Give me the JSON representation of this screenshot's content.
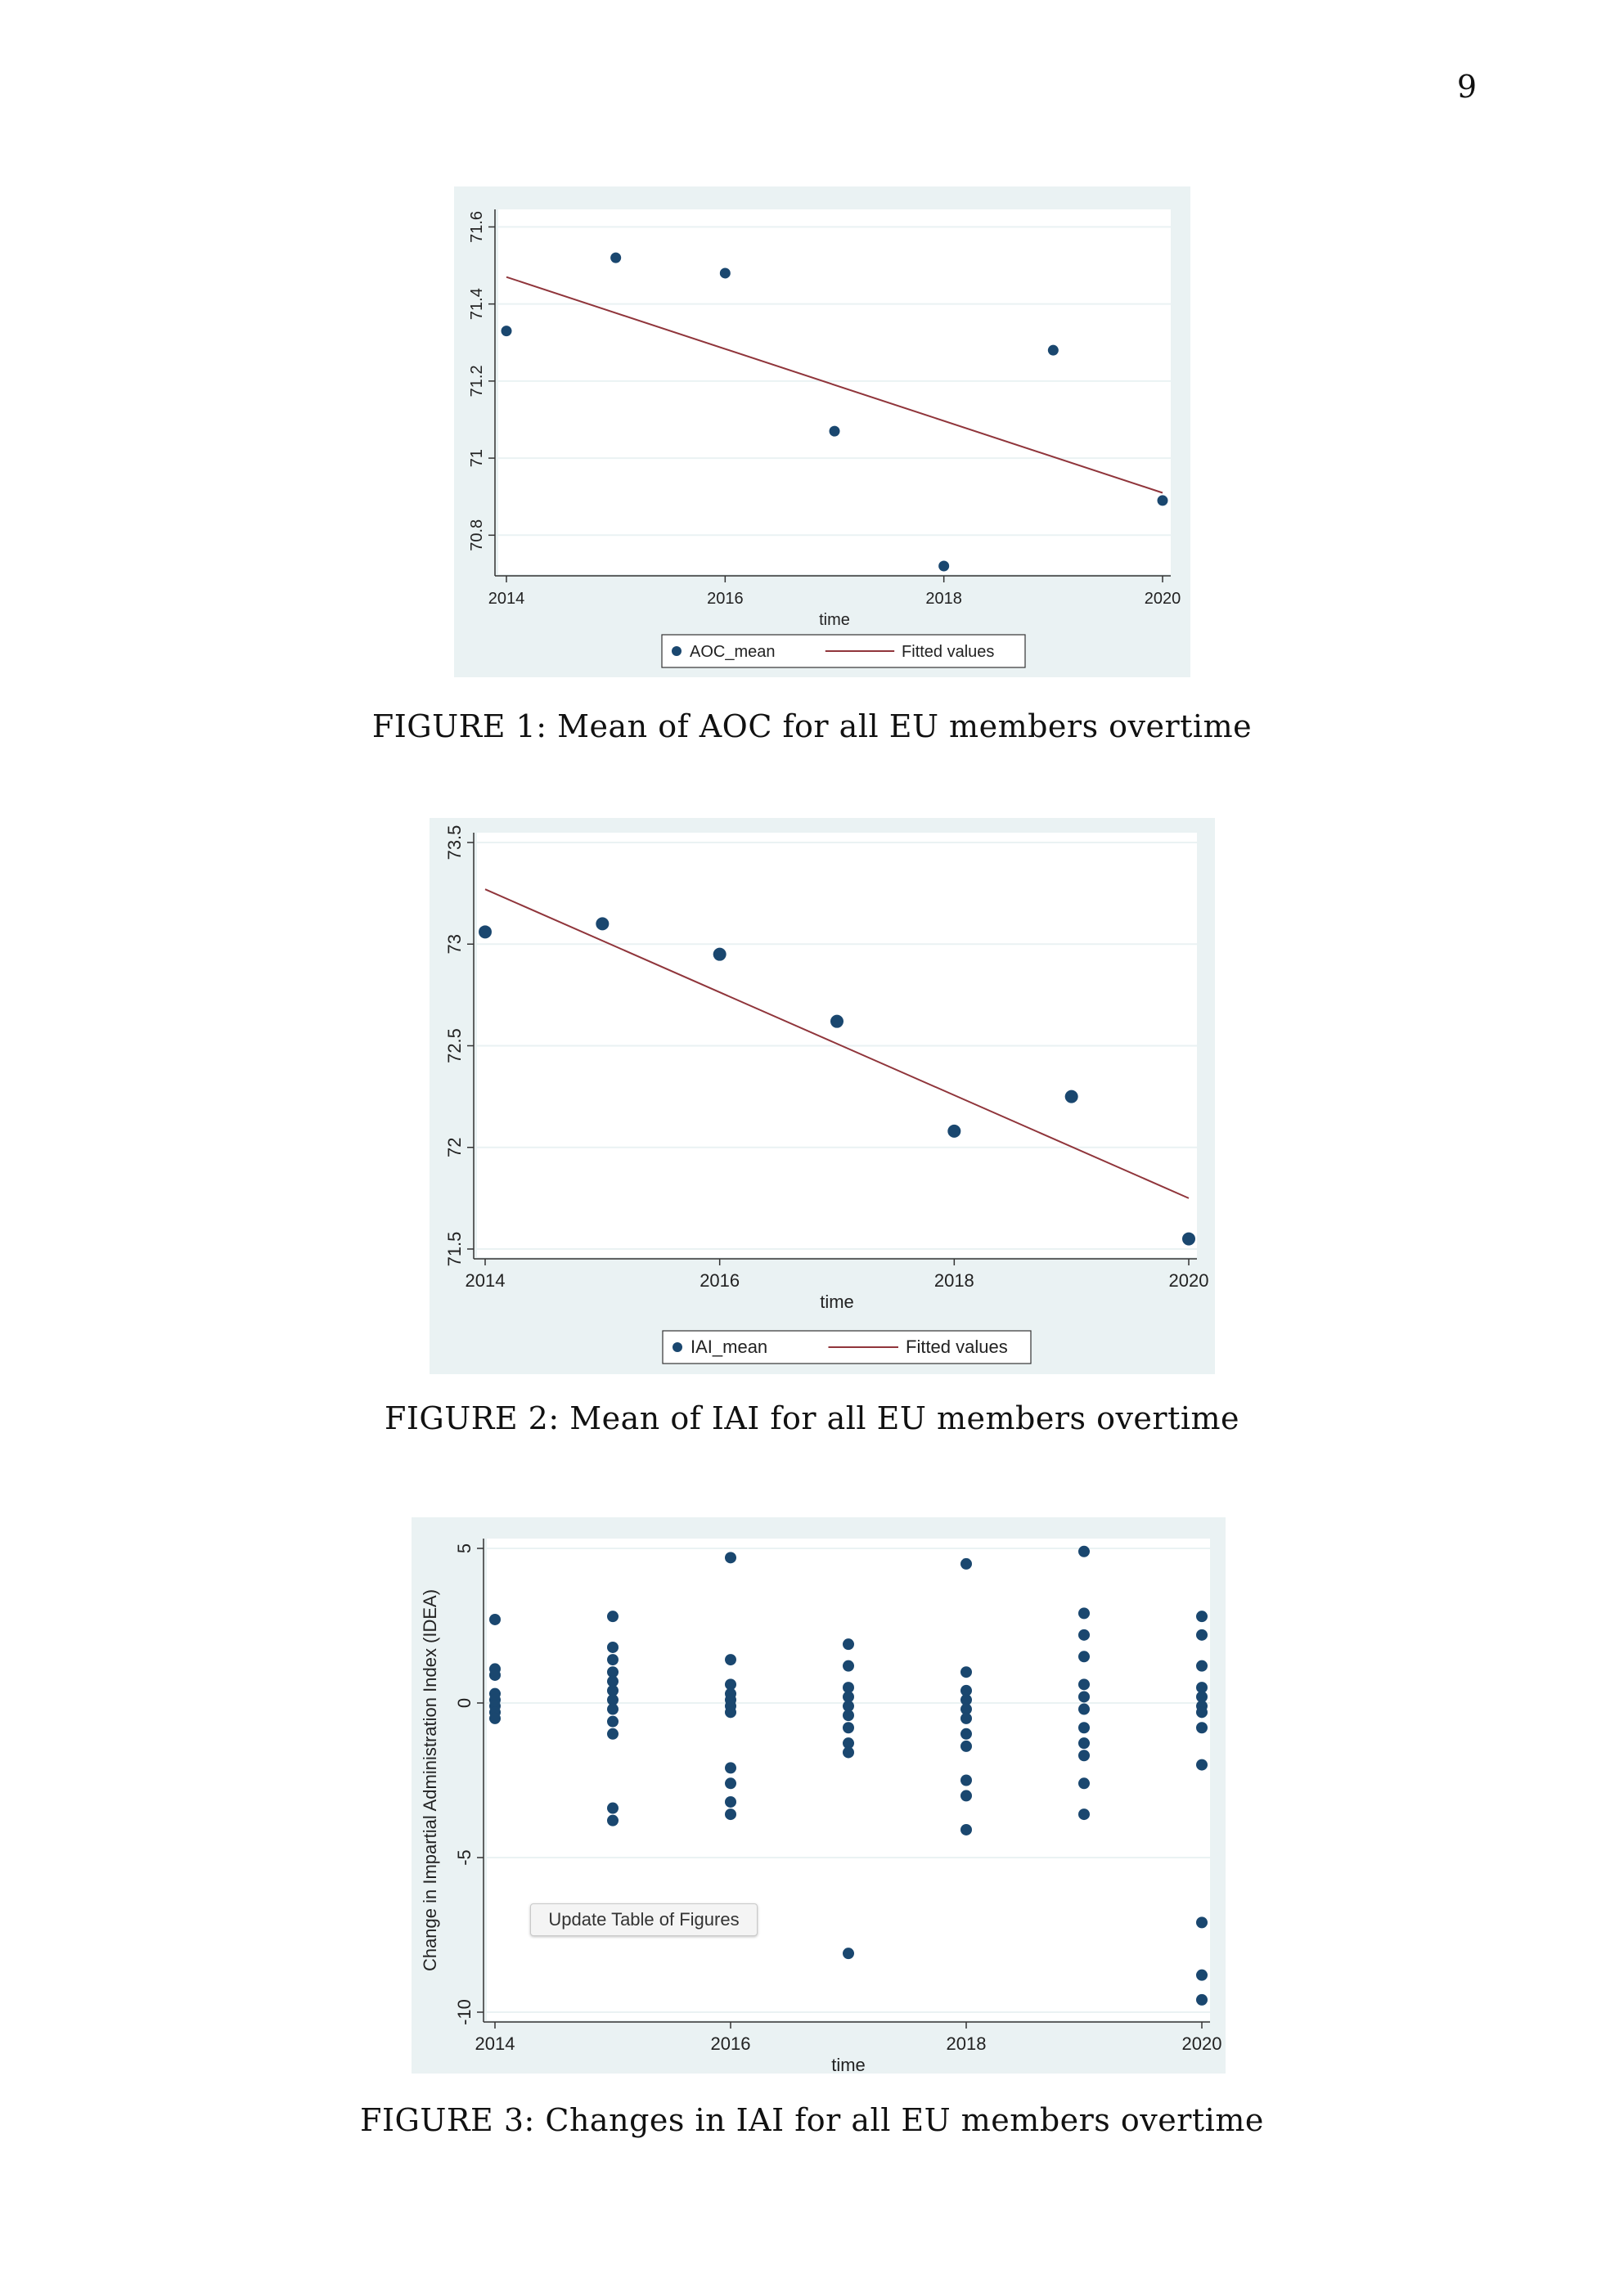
{
  "page": {
    "number": "9"
  },
  "captions": {
    "fig1": "FIGURE 1: Mean of AOC for all EU members overtime",
    "fig2": "FIGURE 2: Mean of IAI for all EU members overtime",
    "fig3": "FIGURE 3: Changes in IAI for all EU members overtime"
  },
  "update_button": {
    "label": "Update Table of Figures"
  },
  "colors": {
    "panel": "#eaf2f3",
    "plot": "#ffffff",
    "point": "#1a476f",
    "fit": "#90353b",
    "grid": "#eaf2f3"
  },
  "chart_data": [
    {
      "type": "scatter",
      "title": "",
      "xlabel": "time",
      "ylabel": "",
      "xlim": [
        2014,
        2020
      ],
      "ylim": [
        70.72,
        71.62
      ],
      "xticks": [
        "2014",
        "2016",
        "2018",
        "2020"
      ],
      "yticks": [
        "70.8",
        "71",
        "71.2",
        "71.4",
        "71.6"
      ],
      "legend": [
        "AOC_mean",
        "Fitted values"
      ],
      "series": [
        {
          "name": "AOC_mean",
          "x": [
            2014,
            2015,
            2016,
            2017,
            2018,
            2019,
            2020
          ],
          "y": [
            71.33,
            71.52,
            71.48,
            71.07,
            70.72,
            71.28,
            70.89
          ]
        },
        {
          "name": "Fitted values",
          "x": [
            2014,
            2020
          ],
          "y": [
            71.47,
            70.91
          ]
        }
      ]
    },
    {
      "type": "scatter",
      "title": "",
      "xlabel": "time",
      "ylabel": "",
      "xlim": [
        2014,
        2020
      ],
      "ylim": [
        71.5,
        73.5
      ],
      "xticks": [
        "2014",
        "2016",
        "2018",
        "2020"
      ],
      "yticks": [
        "71.5",
        "72",
        "72.5",
        "73",
        "73.5"
      ],
      "legend": [
        "IAI_mean",
        "Fitted values"
      ],
      "series": [
        {
          "name": "IAI_mean",
          "x": [
            2014,
            2015,
            2016,
            2017,
            2018,
            2019,
            2020
          ],
          "y": [
            73.06,
            73.1,
            72.95,
            72.62,
            72.08,
            72.25,
            71.55
          ]
        },
        {
          "name": "Fitted values",
          "x": [
            2014,
            2020
          ],
          "y": [
            73.27,
            71.75
          ]
        }
      ]
    },
    {
      "type": "scatter",
      "title": "",
      "xlabel": "time",
      "ylabel": "Change in Impartial Administration Index (IDEA)",
      "xlim": [
        2014,
        2020
      ],
      "ylim": [
        -10,
        5
      ],
      "xticks": [
        "2014",
        "2016",
        "2018",
        "2020"
      ],
      "yticks": [
        "-10",
        "-5",
        "0",
        "5"
      ],
      "legend": [],
      "series": [
        {
          "name": "change",
          "points": [
            [
              2014,
              2.7
            ],
            [
              2014,
              1.1
            ],
            [
              2014,
              0.9
            ],
            [
              2014,
              0.3
            ],
            [
              2014,
              0.1
            ],
            [
              2014,
              -0.1
            ],
            [
              2014,
              -0.3
            ],
            [
              2014,
              -0.5
            ],
            [
              2015,
              2.8
            ],
            [
              2015,
              1.8
            ],
            [
              2015,
              1.4
            ],
            [
              2015,
              1.0
            ],
            [
              2015,
              0.7
            ],
            [
              2015,
              0.4
            ],
            [
              2015,
              0.1
            ],
            [
              2015,
              -0.2
            ],
            [
              2015,
              -0.6
            ],
            [
              2015,
              -1.0
            ],
            [
              2015,
              -3.4
            ],
            [
              2015,
              -3.8
            ],
            [
              2016,
              4.7
            ],
            [
              2016,
              1.4
            ],
            [
              2016,
              0.6
            ],
            [
              2016,
              0.3
            ],
            [
              2016,
              0.1
            ],
            [
              2016,
              -0.1
            ],
            [
              2016,
              -0.3
            ],
            [
              2016,
              -2.1
            ],
            [
              2016,
              -2.6
            ],
            [
              2016,
              -3.2
            ],
            [
              2016,
              -3.6
            ],
            [
              2017,
              1.9
            ],
            [
              2017,
              1.2
            ],
            [
              2017,
              0.5
            ],
            [
              2017,
              0.2
            ],
            [
              2017,
              -0.1
            ],
            [
              2017,
              -0.4
            ],
            [
              2017,
              -0.8
            ],
            [
              2017,
              -1.3
            ],
            [
              2017,
              -1.6
            ],
            [
              2017,
              -8.1
            ],
            [
              2018,
              4.5
            ],
            [
              2018,
              1.0
            ],
            [
              2018,
              0.4
            ],
            [
              2018,
              0.1
            ],
            [
              2018,
              -0.2
            ],
            [
              2018,
              -0.5
            ],
            [
              2018,
              -1.0
            ],
            [
              2018,
              -1.4
            ],
            [
              2018,
              -2.5
            ],
            [
              2018,
              -3.0
            ],
            [
              2018,
              -4.1
            ],
            [
              2019,
              4.9
            ],
            [
              2019,
              2.9
            ],
            [
              2019,
              2.2
            ],
            [
              2019,
              1.5
            ],
            [
              2019,
              0.6
            ],
            [
              2019,
              0.2
            ],
            [
              2019,
              -0.2
            ],
            [
              2019,
              -0.8
            ],
            [
              2019,
              -1.3
            ],
            [
              2019,
              -1.7
            ],
            [
              2019,
              -2.6
            ],
            [
              2019,
              -3.6
            ],
            [
              2020,
              2.8
            ],
            [
              2020,
              2.2
            ],
            [
              2020,
              1.2
            ],
            [
              2020,
              0.5
            ],
            [
              2020,
              0.2
            ],
            [
              2020,
              -0.1
            ],
            [
              2020,
              -0.3
            ],
            [
              2020,
              -0.8
            ],
            [
              2020,
              -2.0
            ],
            [
              2020,
              -7.1
            ],
            [
              2020,
              -8.8
            ],
            [
              2020,
              -9.6
            ]
          ]
        }
      ]
    }
  ]
}
